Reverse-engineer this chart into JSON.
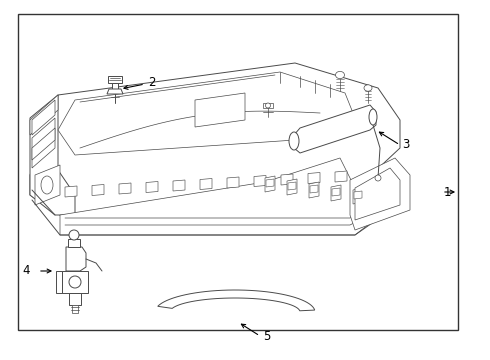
{
  "bg_color": "#ffffff",
  "line_color": "#4a4a4a",
  "border_lw": 1.0,
  "part_lw": 0.7,
  "thin_lw": 0.5,
  "label_fontsize": 8.5
}
